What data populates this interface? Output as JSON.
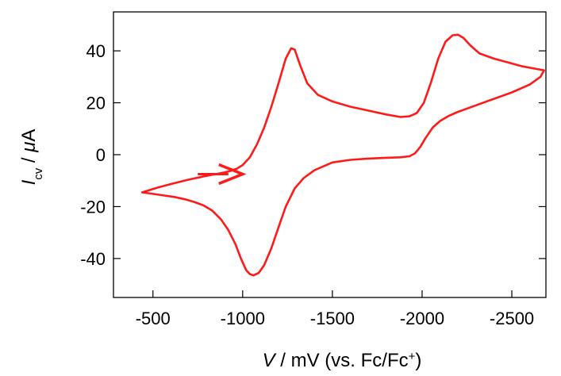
{
  "chart_data": {
    "type": "line",
    "title": "",
    "xlabel": {
      "symbol": "V",
      "text": " / mV (vs. Fc/Fc",
      "superscript": "+",
      "close": ")"
    },
    "ylabel": {
      "symbol": "I",
      "subscript": "cv",
      "text": " / ",
      "unit_prefix": "μ",
      "unit": "A"
    },
    "xlim": [
      -280,
      -2690
    ],
    "ylim": [
      -55,
      55
    ],
    "xticks": [
      -500,
      -1000,
      -1500,
      -2000,
      -2500
    ],
    "xtick_labels": [
      "-500",
      "-1000",
      "-1500",
      "-2000",
      "-2500"
    ],
    "yticks": [
      -40,
      -20,
      0,
      20,
      40
    ],
    "ytick_labels": [
      "-40",
      "-20",
      "0",
      "20",
      "40"
    ],
    "grid": false,
    "colors": {
      "trace": "#ff1a1a"
    },
    "series": [
      {
        "x": [
          -440,
          -520,
          -600,
          -700,
          -780,
          -850,
          -900,
          -940,
          -970,
          -1000,
          -1040,
          -1080,
          -1120,
          -1160,
          -1200,
          -1240,
          -1270,
          -1290,
          -1320,
          -1360,
          -1420,
          -1500,
          -1600,
          -1700,
          -1800,
          -1880,
          -1930,
          -1970,
          -2010,
          -2050,
          -2090,
          -2130,
          -2170,
          -2200,
          -2230,
          -2270,
          -2320,
          -2400,
          -2480,
          -2560,
          -2640,
          -2680,
          -2660,
          -2600,
          -2500,
          -2400,
          -2300,
          -2200,
          -2150,
          -2100,
          -2060,
          -2020,
          -1990,
          -1960,
          -1930,
          -1880,
          -1800,
          -1700,
          -1600,
          -1500,
          -1400,
          -1340,
          -1290,
          -1240,
          -1200,
          -1160,
          -1120,
          -1090,
          -1060,
          -1040,
          -1020,
          -990,
          -960,
          -920,
          -880,
          -830,
          -780,
          -730,
          -680,
          -620,
          -560,
          -500,
          -440
        ],
        "y": [
          -14.5,
          -12.8,
          -11.3,
          -9.6,
          -8.4,
          -7.5,
          -6.8,
          -6.1,
          -5.3,
          -4.0,
          -1.0,
          4.0,
          10.5,
          18.5,
          27.5,
          37.0,
          41.0,
          40.5,
          34.5,
          27.5,
          23.0,
          20.5,
          18.5,
          17.0,
          15.5,
          14.5,
          14.8,
          16.0,
          20.0,
          28.0,
          37.0,
          43.5,
          46.0,
          46.2,
          45.0,
          42.0,
          39.0,
          37.0,
          35.5,
          34.0,
          33.0,
          32.5,
          30.0,
          27.0,
          24.0,
          21.5,
          19.0,
          16.5,
          15.0,
          13.0,
          10.5,
          6.5,
          3.0,
          0.5,
          -0.6,
          -1.0,
          -1.2,
          -1.5,
          -2.0,
          -3.0,
          -6.0,
          -9.0,
          -13.0,
          -20.0,
          -28.0,
          -36.0,
          -42.5,
          -45.5,
          -46.5,
          -46.0,
          -44.5,
          -40.0,
          -34.5,
          -29.0,
          -25.0,
          -21.5,
          -19.5,
          -18.2,
          -17.2,
          -16.3,
          -15.7,
          -15.1,
          -14.5
        ]
      }
    ],
    "annotations": [
      {
        "type": "arrow",
        "direction": "right",
        "x_from": -750,
        "x_to": -1000,
        "y": -7.5
      }
    ]
  }
}
